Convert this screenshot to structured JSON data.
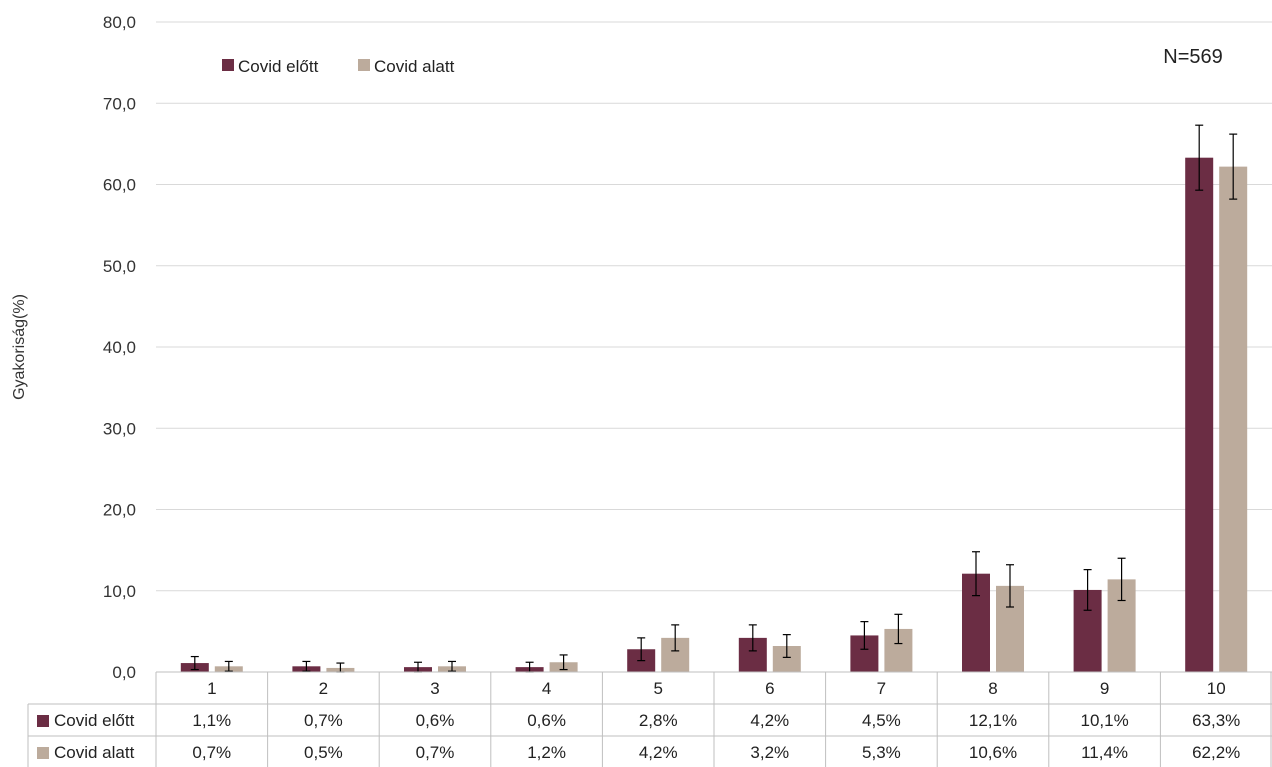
{
  "colors": {
    "series1": "#6b2d44",
    "series2": "#bcab9c",
    "grid": "#d9d9d9",
    "axis": "#bfbfbf",
    "error": "#000000"
  },
  "chart_data": {
    "type": "bar",
    "title": "",
    "xlabel": "",
    "ylabel": "Gyakoriság(%)",
    "ylim": [
      0,
      80
    ],
    "yticks": [
      "0,0",
      "10,0",
      "20,0",
      "30,0",
      "40,0",
      "50,0",
      "60,0",
      "70,0",
      "80,0"
    ],
    "grid": true,
    "legend_position": "top-left",
    "annotation": "N=569",
    "categories": [
      "1",
      "2",
      "3",
      "4",
      "5",
      "6",
      "7",
      "8",
      "9",
      "10"
    ],
    "series": [
      {
        "name": "Covid előtt",
        "values": [
          1.1,
          0.7,
          0.6,
          0.6,
          2.8,
          4.2,
          4.5,
          12.1,
          10.1,
          63.3
        ],
        "labels": [
          "1,1%",
          "0,7%",
          "0,6%",
          "0,6%",
          "2,8%",
          "4,2%",
          "4,5%",
          "12,1%",
          "10,1%",
          "63,3%"
        ],
        "error": [
          0.8,
          0.6,
          0.6,
          0.6,
          1.4,
          1.6,
          1.7,
          2.7,
          2.5,
          4.0
        ]
      },
      {
        "name": "Covid alatt",
        "values": [
          0.7,
          0.5,
          0.7,
          1.2,
          4.2,
          3.2,
          5.3,
          10.6,
          11.4,
          62.2
        ],
        "labels": [
          "0,7%",
          "0,5%",
          "0,7%",
          "1,2%",
          "4,2%",
          "3,2%",
          "5,3%",
          "10,6%",
          "11,4%",
          "62,2%"
        ],
        "error": [
          0.6,
          0.6,
          0.6,
          0.9,
          1.6,
          1.4,
          1.8,
          2.6,
          2.6,
          4.0
        ]
      }
    ]
  }
}
